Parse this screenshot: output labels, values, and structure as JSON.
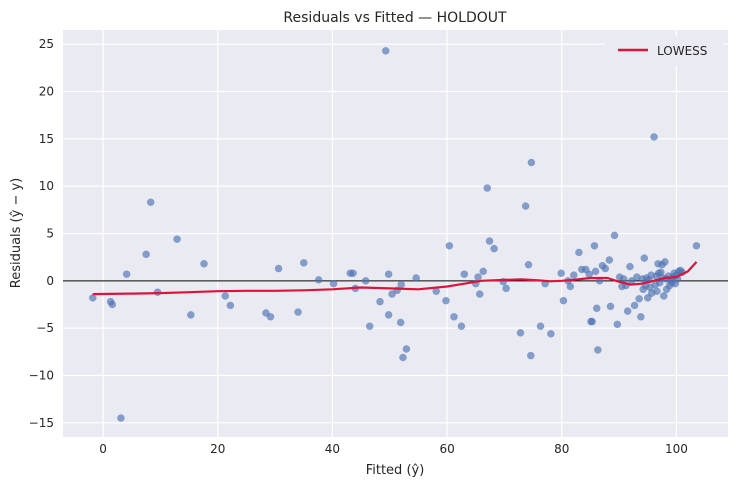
{
  "chart_data": {
    "type": "scatter",
    "title": "Residuals vs Fitted — HOLDOUT",
    "xlabel": "Fitted (ŷ)",
    "ylabel": "Residuals (ŷ − y)",
    "xlim": [
      -7,
      109
    ],
    "ylim": [
      -16.5,
      26.5
    ],
    "xticks": [
      0,
      20,
      40,
      60,
      80,
      100
    ],
    "yticks": [
      -15,
      -10,
      -5,
      0,
      5,
      10,
      15,
      20,
      25
    ],
    "grid": true,
    "reference_line_y": 0,
    "legend_position": "top-right",
    "colors": {
      "background": "#EAEAF2",
      "grid": "#FFFFFF",
      "points": "#4C72B0",
      "lowess": "#DC143C",
      "zero_line": "#000000"
    },
    "series": [
      {
        "type": "scatter",
        "points": [
          [
            -1.8,
            -1.8
          ],
          [
            1.3,
            -2.2
          ],
          [
            1.6,
            -2.5
          ],
          [
            3.1,
            -14.5
          ],
          [
            4.1,
            0.7
          ],
          [
            7.5,
            2.8
          ],
          [
            8.3,
            8.3
          ],
          [
            9.5,
            -1.2
          ],
          [
            12.9,
            4.4
          ],
          [
            15.3,
            -3.6
          ],
          [
            17.6,
            1.8
          ],
          [
            21.3,
            -1.6
          ],
          [
            22.2,
            -2.6
          ],
          [
            28.4,
            -3.4
          ],
          [
            29.2,
            -3.8
          ],
          [
            30.6,
            1.3
          ],
          [
            34.0,
            -3.3
          ],
          [
            35.0,
            1.9
          ],
          [
            37.6,
            0.1
          ],
          [
            40.2,
            -0.3
          ],
          [
            43.1,
            0.8
          ],
          [
            43.6,
            0.8
          ],
          [
            44.0,
            -0.8
          ],
          [
            45.8,
            0.0
          ],
          [
            46.5,
            -4.8
          ],
          [
            48.3,
            -2.2
          ],
          [
            49.3,
            24.3
          ],
          [
            49.8,
            0.7
          ],
          [
            49.8,
            -3.6
          ],
          [
            50.4,
            -1.4
          ],
          [
            51.3,
            -1.0
          ],
          [
            51.9,
            -4.4
          ],
          [
            52.3,
            -8.1
          ],
          [
            52.9,
            -7.2
          ],
          [
            52.0,
            -0.4
          ],
          [
            54.6,
            0.3
          ],
          [
            58.1,
            -1.1
          ],
          [
            59.8,
            -2.1
          ],
          [
            60.4,
            3.7
          ],
          [
            61.2,
            -3.8
          ],
          [
            62.5,
            -4.8
          ],
          [
            63.0,
            0.7
          ],
          [
            65.0,
            -0.3
          ],
          [
            65.4,
            0.4
          ],
          [
            65.7,
            -1.4
          ],
          [
            66.3,
            1.0
          ],
          [
            67.0,
            9.8
          ],
          [
            67.4,
            4.2
          ],
          [
            68.2,
            3.4
          ],
          [
            69.8,
            -0.1
          ],
          [
            70.3,
            -0.8
          ],
          [
            72.8,
            -5.5
          ],
          [
            73.7,
            7.9
          ],
          [
            74.2,
            1.7
          ],
          [
            74.6,
            -7.9
          ],
          [
            74.7,
            12.5
          ],
          [
            76.3,
            -4.8
          ],
          [
            77.1,
            -0.3
          ],
          [
            78.1,
            -5.6
          ],
          [
            79.9,
            0.8
          ],
          [
            80.3,
            -2.1
          ],
          [
            81.1,
            0.0
          ],
          [
            81.5,
            -0.6
          ],
          [
            82.1,
            0.6
          ],
          [
            83.0,
            3.0
          ],
          [
            83.5,
            1.2
          ],
          [
            84.2,
            1.2
          ],
          [
            84.8,
            0.7
          ],
          [
            85.1,
            -4.3
          ],
          [
            85.3,
            -4.3
          ],
          [
            85.7,
            3.7
          ],
          [
            85.9,
            1.0
          ],
          [
            86.1,
            -2.9
          ],
          [
            86.3,
            -7.3
          ],
          [
            86.6,
            0.0
          ],
          [
            87.1,
            1.6
          ],
          [
            87.6,
            1.3
          ],
          [
            88.3,
            2.2
          ],
          [
            88.5,
            -2.7
          ],
          [
            89.2,
            4.8
          ],
          [
            89.7,
            -4.6
          ],
          [
            90.1,
            0.4
          ],
          [
            90.5,
            -0.6
          ],
          [
            90.8,
            0.2
          ],
          [
            91.2,
            -0.5
          ],
          [
            91.5,
            -3.2
          ],
          [
            91.9,
            1.5
          ],
          [
            92.2,
            0.0
          ],
          [
            92.7,
            -2.6
          ],
          [
            93.1,
            0.4
          ],
          [
            93.5,
            -1.9
          ],
          [
            93.8,
            -3.8
          ],
          [
            94.1,
            0.2
          ],
          [
            94.2,
            -0.9
          ],
          [
            94.4,
            2.4
          ],
          [
            94.6,
            -0.5
          ],
          [
            94.8,
            0.3
          ],
          [
            95.0,
            -1.8
          ],
          [
            95.2,
            0.1
          ],
          [
            95.4,
            -0.7
          ],
          [
            95.6,
            0.6
          ],
          [
            95.7,
            -1.3
          ],
          [
            96.1,
            15.2
          ],
          [
            96.3,
            -0.4
          ],
          [
            96.5,
            0.5
          ],
          [
            96.6,
            -1.1
          ],
          [
            96.8,
            1.8
          ],
          [
            96.9,
            0.8
          ],
          [
            97.1,
            -0.2
          ],
          [
            97.3,
            0.9
          ],
          [
            97.5,
            1.7
          ],
          [
            97.6,
            0.3
          ],
          [
            97.8,
            -1.6
          ],
          [
            98.0,
            2.0
          ],
          [
            98.2,
            0.2
          ],
          [
            98.3,
            -0.9
          ],
          [
            98.6,
            0.5
          ],
          [
            98.8,
            -0.5
          ],
          [
            99.0,
            0.1
          ],
          [
            99.2,
            -0.2
          ],
          [
            99.4,
            0.4
          ],
          [
            99.6,
            0.8
          ],
          [
            99.8,
            -0.3
          ],
          [
            100.0,
            0.6
          ],
          [
            100.2,
            0.2
          ],
          [
            100.4,
            1.0
          ],
          [
            100.7,
            1.1
          ],
          [
            101.0,
            0.9
          ],
          [
            103.5,
            3.7
          ]
        ]
      },
      {
        "type": "line",
        "name": "LOWESS",
        "x": [
          -1.8,
          5,
          10,
          15,
          20,
          25,
          30,
          35,
          40,
          45,
          50,
          55,
          60,
          63,
          66,
          70,
          73,
          76,
          78,
          80,
          82,
          85,
          88,
          90,
          92,
          94,
          96,
          98,
          100,
          102,
          103.5
        ],
        "y": [
          -1.4,
          -1.35,
          -1.3,
          -1.2,
          -1.1,
          -1.05,
          -1.05,
          -1.0,
          -0.9,
          -0.7,
          -0.8,
          -0.9,
          -0.6,
          -0.3,
          0.0,
          0.1,
          0.15,
          0.05,
          -0.05,
          0.0,
          0.1,
          0.3,
          0.3,
          -0.1,
          -0.4,
          -0.3,
          0.0,
          0.3,
          0.4,
          1.0,
          2.0
        ]
      }
    ]
  }
}
